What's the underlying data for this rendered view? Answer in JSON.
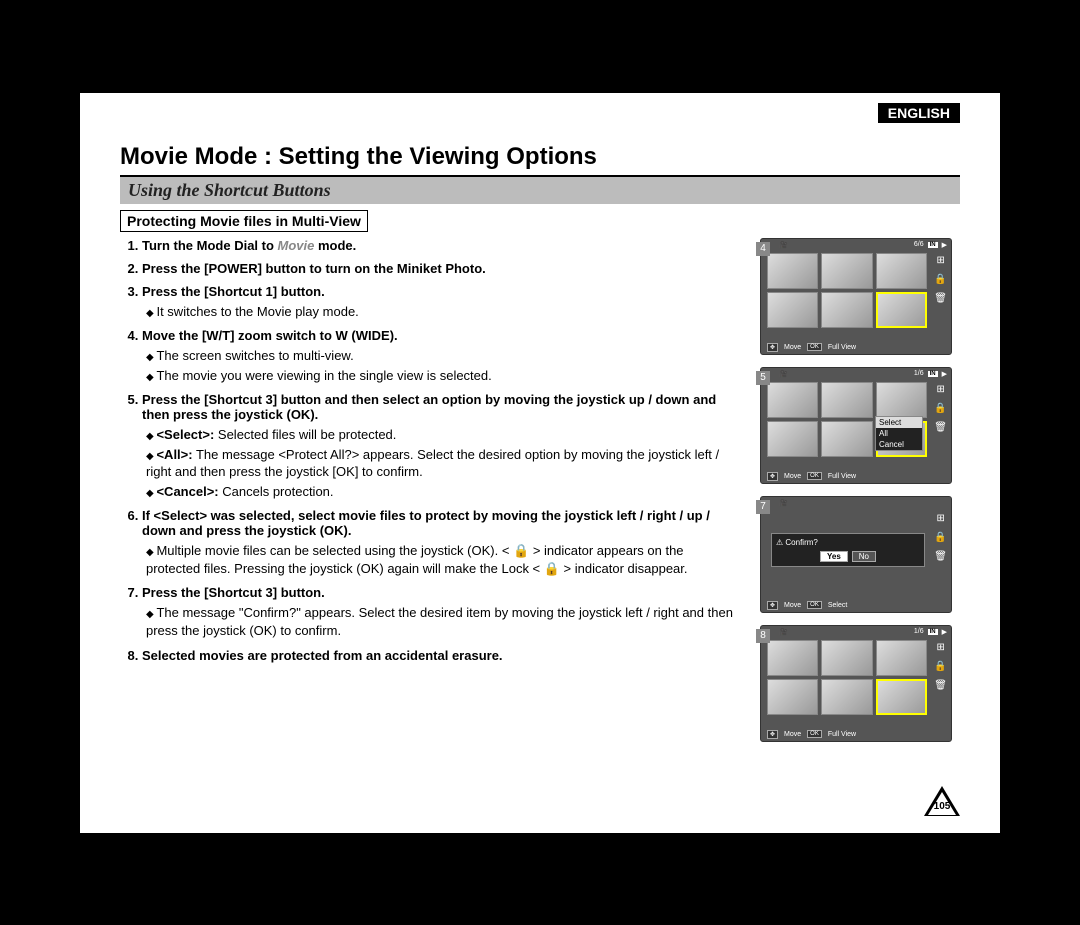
{
  "header": {
    "language": "ENGLISH",
    "title": "Movie Mode : Setting the Viewing Options",
    "subtitle": "Using the Shortcut Buttons",
    "box_heading": "Protecting Movie files in Multi-View"
  },
  "steps": [
    {
      "n": 1,
      "text_a": "Turn the Mode Dial to ",
      "accent": "Movie",
      "text_b": " mode.",
      "subs": []
    },
    {
      "n": 2,
      "text_a": "Press the [POWER] button to turn on the Miniket Photo.",
      "subs": []
    },
    {
      "n": 3,
      "text_a": "Press the [Shortcut 1] button.",
      "subs": [
        "It switches to the Movie play mode."
      ]
    },
    {
      "n": 4,
      "text_a": "Move the [W/T] zoom switch to W (WIDE).",
      "subs": [
        "The screen switches to multi-view.",
        "The movie you were viewing in the single view is selected."
      ]
    },
    {
      "n": 5,
      "text_a": "Press the [Shortcut 3] button and then select an option by moving the joystick up / down and then press the joystick (OK).",
      "subs": [
        "<Select>: Selected files will be protected.",
        "<All>: The message <Protect All?> appears. Select the desired option by moving the joystick left / right and then press the joystick [OK] to confirm.",
        "<Cancel>: Cancels protection."
      ]
    },
    {
      "n": 6,
      "text_a": "If <Select> was selected, select movie files to protect by moving the joystick left / right / up / down and press the joystick (OK).",
      "subs": [
        "Multiple movie files can be selected using the joystick (OK). < 🔒 > indicator appears on the protected files. Pressing the joystick (OK) again will make the Lock < 🔒 > indicator disappear."
      ]
    },
    {
      "n": 7,
      "text_a": "Press the [Shortcut 3] button.",
      "subs": [
        "The message \"Confirm?\" appears. Select the desired item by moving the joystick left / right  and then press the joystick (OK) to confirm."
      ]
    },
    {
      "n": 8,
      "text_a": "Selected movies are protected from an accidental erasure.",
      "subs": []
    }
  ],
  "screens": {
    "s4": {
      "badge": "4",
      "counter": "6/6",
      "in": "IN",
      "bottom_left": "Move",
      "bottom_right": "Full View"
    },
    "s5": {
      "badge": "5",
      "counter": "1/6",
      "in": "IN",
      "menu": {
        "opt1": "Select",
        "opt2": "All",
        "opt3": "Cancel"
      },
      "bottom_left": "Move",
      "bottom_right": "Full View"
    },
    "s7": {
      "badge": "7",
      "confirm_label": "⚠ Confirm?",
      "yes": "Yes",
      "no": "No",
      "bottom_left": "Move",
      "bottom_right": "Select"
    },
    "s8": {
      "badge": "8",
      "counter": "1/6",
      "in": "IN",
      "bottom_left": "Move",
      "bottom_right": "Full View"
    }
  },
  "page_number": "105",
  "colors": {
    "page_bg": "#ffffff",
    "outer_bg": "#000000",
    "subtitle_bg": "#bcbcbc",
    "screen_bg": "#555555",
    "highlight": "#dddddd"
  }
}
